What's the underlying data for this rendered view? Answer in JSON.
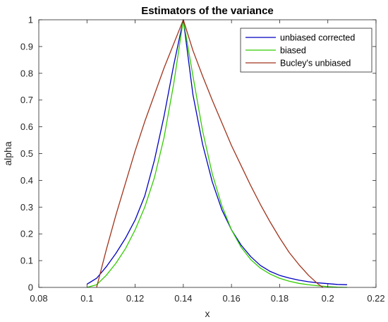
{
  "chart_data": {
    "type": "line",
    "title": "Estimators of the variance",
    "xlabel": "x",
    "ylabel": "alpha",
    "xlim": [
      0.08,
      0.22
    ],
    "ylim": [
      0,
      1
    ],
    "xticks": [
      "0.08",
      "0.1",
      "0.12",
      "0.14",
      "0.16",
      "0.18",
      "0.2",
      "0.22"
    ],
    "yticks": [
      "0",
      "0.1",
      "0.2",
      "0.3",
      "0.4",
      "0.5",
      "0.6",
      "0.7",
      "0.8",
      "0.9",
      "1"
    ],
    "grid": false,
    "legend_position": "top-right",
    "series": [
      {
        "name": "unbiased corrected",
        "color": "#0000bf",
        "x": [
          0.1,
          0.104,
          0.108,
          0.112,
          0.116,
          0.12,
          0.124,
          0.128,
          0.132,
          0.136,
          0.14,
          0.144,
          0.148,
          0.152,
          0.156,
          0.16,
          0.164,
          0.168,
          0.172,
          0.176,
          0.18,
          0.184,
          0.188,
          0.192,
          0.196,
          0.2,
          0.204,
          0.208
        ],
        "y": [
          0.012,
          0.034,
          0.077,
          0.127,
          0.184,
          0.252,
          0.342,
          0.475,
          0.64,
          0.83,
          1.0,
          0.72,
          0.535,
          0.395,
          0.29,
          0.215,
          0.158,
          0.115,
          0.082,
          0.06,
          0.045,
          0.035,
          0.027,
          0.021,
          0.017,
          0.014,
          0.011,
          0.01
        ]
      },
      {
        "name": "biased",
        "color": "#33cc00",
        "x": [
          0.1,
          0.104,
          0.108,
          0.112,
          0.116,
          0.12,
          0.124,
          0.128,
          0.132,
          0.136,
          0.14,
          0.144,
          0.148,
          0.152,
          0.156,
          0.16,
          0.164,
          0.168,
          0.172,
          0.176,
          0.18,
          0.184,
          0.188,
          0.192,
          0.196,
          0.2,
          0.204,
          0.208
        ],
        "y": [
          0.0,
          0.01,
          0.045,
          0.09,
          0.145,
          0.215,
          0.3,
          0.41,
          0.56,
          0.76,
          1.0,
          0.79,
          0.585,
          0.425,
          0.305,
          0.215,
          0.15,
          0.104,
          0.072,
          0.05,
          0.034,
          0.023,
          0.015,
          0.01,
          0.006,
          0.003,
          0.001,
          0.0
        ]
      },
      {
        "name": "Bucley's unbiased",
        "color": "#a0341c",
        "x": [
          0.104,
          0.108,
          0.112,
          0.116,
          0.12,
          0.124,
          0.128,
          0.132,
          0.136,
          0.14,
          0.144,
          0.148,
          0.152,
          0.156,
          0.16,
          0.164,
          0.168,
          0.172,
          0.176,
          0.18,
          0.184,
          0.188,
          0.192,
          0.196,
          0.198
        ],
        "y": [
          0.0,
          0.14,
          0.27,
          0.39,
          0.51,
          0.62,
          0.72,
          0.82,
          0.91,
          1.0,
          0.885,
          0.79,
          0.7,
          0.615,
          0.53,
          0.455,
          0.38,
          0.31,
          0.245,
          0.185,
          0.13,
          0.085,
          0.045,
          0.012,
          0.0
        ]
      }
    ]
  }
}
